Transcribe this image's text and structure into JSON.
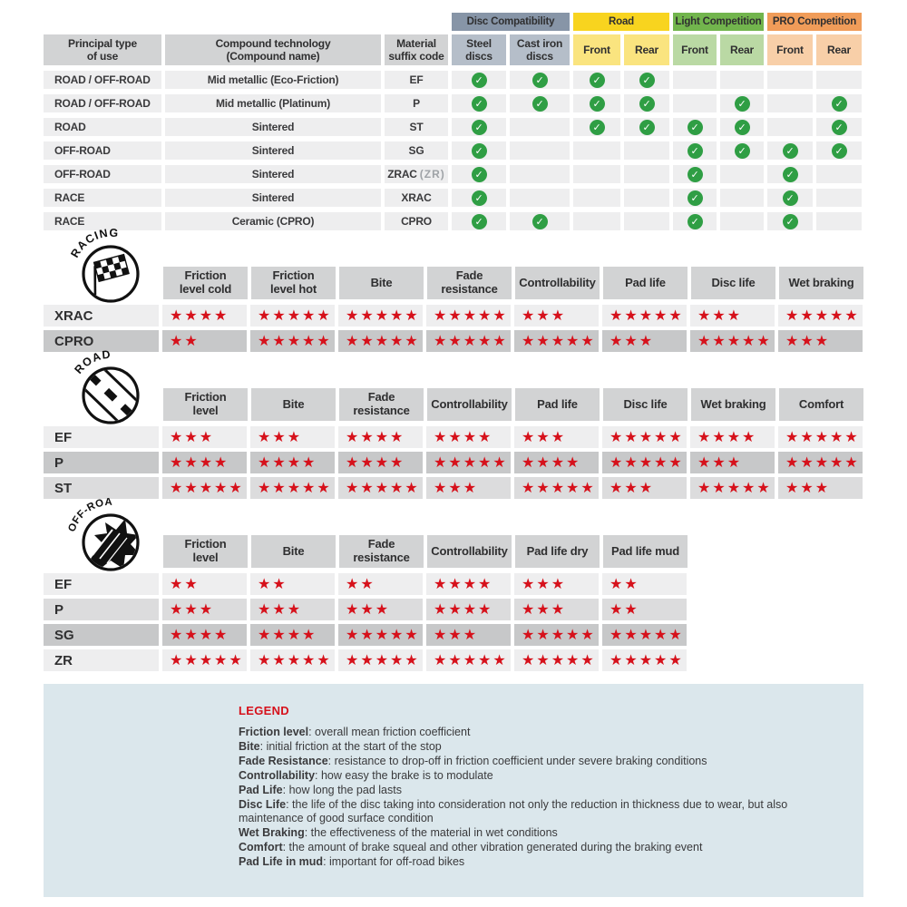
{
  "colors": {
    "header_gray": "#d2d3d4",
    "row_light": "#eeeeef",
    "row_mid": "#dcdcdd",
    "row_dark": "#c7c8c9",
    "check_green": "#2f9e44",
    "star_red": "#d6111b",
    "legend_bg": "#dbe7ec",
    "text_dark": "#3a3a3c",
    "code_note_gray": "#9fa3a7"
  },
  "compat_table": {
    "fixed_headers": [
      "Principal type\nof use",
      "Compound technology\n(Compound name)",
      "Material\nsuffix code"
    ],
    "groups": [
      {
        "label": "Disc Compatibility",
        "color": "#8795a7",
        "sub_color": "#b5bec9",
        "cols": [
          "Steel\ndiscs",
          "Cast iron\ndiscs"
        ]
      },
      {
        "label": "Road",
        "color": "#f8d41f",
        "sub_color": "#fae47f",
        "cols": [
          "Front",
          "Rear"
        ]
      },
      {
        "label": "Light Competition",
        "color": "#72b54d",
        "sub_color": "#bad9a4",
        "cols": [
          "Front",
          "Rear"
        ]
      },
      {
        "label": "PRO Competition",
        "color": "#f09c59",
        "sub_color": "#f8cfa8",
        "cols": [
          "Front",
          "Rear"
        ]
      }
    ],
    "rows": [
      {
        "use": "ROAD / OFF-ROAD",
        "compound": "Mid metallic (Eco-Friction)",
        "code": "EF",
        "code_note": "",
        "checks": [
          1,
          1,
          1,
          1,
          0,
          0,
          0,
          0
        ]
      },
      {
        "use": "ROAD / OFF-ROAD",
        "compound": "Mid metallic (Platinum)",
        "code": "P",
        "code_note": "",
        "checks": [
          1,
          1,
          1,
          1,
          0,
          1,
          0,
          1
        ]
      },
      {
        "use": "ROAD",
        "compound": "Sintered",
        "code": "ST",
        "code_note": "",
        "checks": [
          1,
          0,
          1,
          1,
          1,
          1,
          0,
          1
        ]
      },
      {
        "use": "OFF-ROAD",
        "compound": "Sintered",
        "code": "SG",
        "code_note": "",
        "checks": [
          1,
          0,
          0,
          0,
          1,
          1,
          1,
          1
        ]
      },
      {
        "use": "OFF-ROAD",
        "compound": "Sintered",
        "code": "ZRAC",
        "code_note": "(ZR)",
        "checks": [
          1,
          0,
          0,
          0,
          1,
          0,
          1,
          0
        ]
      },
      {
        "use": "RACE",
        "compound": "Sintered",
        "code": "XRAC",
        "code_note": "",
        "checks": [
          1,
          0,
          0,
          0,
          1,
          0,
          1,
          0
        ]
      },
      {
        "use": "RACE",
        "compound": "Ceramic (CPRO)",
        "code": "CPRO",
        "code_note": "",
        "checks": [
          1,
          1,
          0,
          0,
          1,
          0,
          1,
          0
        ]
      }
    ]
  },
  "rating_tables": [
    {
      "id": "racing",
      "icon": "racing-flag-icon",
      "icon_label": "RACING",
      "columns": [
        "Friction\nlevel cold",
        "Friction\nlevel hot",
        "Bite",
        "Fade\nresistance",
        "Controllability",
        "Pad life",
        "Disc life",
        "Wet braking"
      ],
      "rows": [
        {
          "label": "XRAC",
          "shade": "light",
          "stars": [
            4,
            5,
            5,
            5,
            3,
            5,
            3,
            5
          ]
        },
        {
          "label": "CPRO",
          "shade": "dark",
          "stars": [
            2,
            5,
            5,
            5,
            5,
            3,
            5,
            3
          ]
        }
      ]
    },
    {
      "id": "road",
      "icon": "road-icon",
      "icon_label": "ROAD",
      "columns": [
        "Friction\nlevel",
        "Bite",
        "Fade\nresistance",
        "Controllability",
        "Pad life",
        "Disc life",
        "Wet braking",
        "Comfort"
      ],
      "rows": [
        {
          "label": "EF",
          "shade": "light",
          "stars": [
            3,
            3,
            4,
            4,
            3,
            5,
            4,
            5
          ]
        },
        {
          "label": "P",
          "shade": "dark",
          "stars": [
            4,
            4,
            4,
            5,
            4,
            5,
            3,
            5
          ]
        },
        {
          "label": "ST",
          "shade": "mid",
          "stars": [
            5,
            5,
            5,
            3,
            5,
            3,
            5,
            3
          ]
        }
      ]
    },
    {
      "id": "offroad",
      "icon": "offroad-mud-icon",
      "icon_label": "OFF-ROAD",
      "columns": [
        "Friction\nlevel",
        "Bite",
        "Fade\nresistance",
        "Controllability",
        "Pad life dry",
        "Pad life mud"
      ],
      "rows": [
        {
          "label": "EF",
          "shade": "light",
          "stars": [
            2,
            2,
            2,
            4,
            3,
            2
          ]
        },
        {
          "label": "P",
          "shade": "mid",
          "stars": [
            3,
            3,
            3,
            4,
            3,
            2
          ]
        },
        {
          "label": "SG",
          "shade": "dark",
          "stars": [
            4,
            4,
            5,
            3,
            5,
            5
          ]
        },
        {
          "label": "ZR",
          "shade": "light",
          "stars": [
            5,
            5,
            5,
            5,
            5,
            5
          ]
        }
      ]
    }
  ],
  "legend": {
    "title": "LEGEND",
    "entries": [
      {
        "term": "Friction level",
        "desc": "overall mean friction coefficient"
      },
      {
        "term": "Bite",
        "desc": "initial friction at the start of the stop"
      },
      {
        "term": "Fade Resistance",
        "desc": "resistance to drop-off in friction coefficient under severe braking conditions"
      },
      {
        "term": "Controllability",
        "desc": "how easy the brake is to modulate"
      },
      {
        "term": "Pad Life",
        "desc": "how long the pad lasts"
      },
      {
        "term": "Disc Life",
        "desc": "the life of the disc taking into consideration not only the reduction in thickness due to wear, but also maintenance of good surface condition"
      },
      {
        "term": "Wet Braking",
        "desc": "the effectiveness of the material in wet conditions"
      },
      {
        "term": "Comfort",
        "desc": "the amount of brake squeal and other vibration generated during the braking event"
      },
      {
        "term": "Pad Life in mud",
        "desc": "important for off-road bikes"
      }
    ]
  }
}
